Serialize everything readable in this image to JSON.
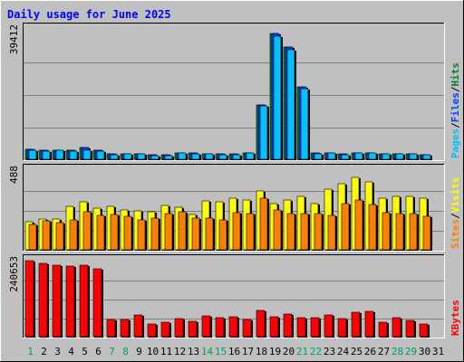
{
  "colors": {
    "background": "#C0C0C0",
    "title": "#0000FF",
    "hits": "#008040",
    "files": "#0040FF",
    "pages": "#00C0FF",
    "visits": "#FFFF00",
    "sites": "#FF8000",
    "kbytes": "#FF0000",
    "weekday_label": "#000000",
    "weekend_label": "#00A060",
    "grid": "#808080",
    "bar_shadow": "#000000"
  },
  "chart_data": {
    "type": "bar",
    "title": "Daily usage for June 2025",
    "days": [
      1,
      2,
      3,
      4,
      5,
      6,
      7,
      8,
      9,
      10,
      11,
      12,
      13,
      14,
      15,
      16,
      17,
      18,
      19,
      20,
      21,
      22,
      23,
      24,
      25,
      26,
      27,
      28,
      29,
      30,
      31
    ],
    "weekend_days": [
      1,
      7,
      8,
      14,
      15,
      21,
      22,
      28,
      29
    ],
    "panels": [
      {
        "id": "hits-files-pages",
        "ymax_label": "39412",
        "ymax": 39412,
        "legend": [
          "Pages",
          "/",
          "Files",
          "/",
          "Hits"
        ],
        "series": [
          {
            "name": "Hits",
            "values": [
              3200,
              3000,
              3100,
              3000,
              3800,
              3000,
              1800,
              2000,
              2000,
              1600,
              1600,
              2300,
              2200,
              2000,
              1800,
              1800,
              2300,
              16800,
              38200,
              34200,
              22300,
              2100,
              2300,
              1900,
              2300,
              2300,
              2000,
              2000,
              2000,
              1700,
              0
            ]
          },
          {
            "name": "Files",
            "values": [
              3200,
              3000,
              3100,
              3000,
              3800,
              3000,
              1800,
              2000,
              2000,
              1600,
              1600,
              2300,
              2200,
              2000,
              1800,
              1800,
              2300,
              16800,
              38200,
              34200,
              22300,
              2100,
              2300,
              1900,
              2300,
              2300,
              2000,
              2000,
              2000,
              1700,
              0
            ]
          },
          {
            "name": "Pages",
            "values": [
              3000,
              2800,
              2900,
              2800,
              3000,
              2800,
              1600,
              1800,
              1800,
              1500,
              1500,
              2100,
              2000,
              1800,
              1700,
              1700,
              2100,
              16300,
              37500,
              33500,
              21500,
              1900,
              2100,
              1700,
              2100,
              2100,
              1800,
              1800,
              1800,
              1600,
              0
            ]
          }
        ]
      },
      {
        "id": "visits-sites",
        "ymax_label": "488",
        "ymax": 488,
        "legend": [
          "Sites",
          "/",
          "Visits"
        ],
        "series": [
          {
            "name": "Visits",
            "values": [
              180,
              195,
              195,
              270,
              300,
              260,
              270,
              250,
              245,
              240,
              280,
              265,
              220,
              305,
              300,
              320,
              310,
              365,
              290,
              310,
              335,
              290,
              375,
              410,
              450,
              420,
              320,
              335,
              335,
              320,
              0
            ]
          },
          {
            "name": "Sites",
            "values": [
              160,
              185,
              170,
              190,
              240,
              215,
              220,
              210,
              190,
              200,
              230,
              240,
              200,
              200,
              190,
              235,
              230,
              320,
              250,
              230,
              225,
              230,
              215,
              290,
              310,
              285,
              235,
              230,
              225,
              210,
              0
            ]
          }
        ]
      },
      {
        "id": "kbytes",
        "ymax_label": "240653",
        "ymax": 240653,
        "legend": [
          "KBytes"
        ],
        "series": [
          {
            "name": "KBytes",
            "values": [
              244000,
              234000,
              228000,
              225000,
              228000,
              218000,
              58000,
              58000,
              72000,
              42000,
              48000,
              60000,
              52000,
              70000,
              64000,
              65000,
              58000,
              85000,
              66000,
              74000,
              62000,
              63000,
              73000,
              60000,
              80000,
              83000,
              49000,
              64000,
              55000,
              44000,
              0
            ]
          }
        ]
      }
    ]
  }
}
